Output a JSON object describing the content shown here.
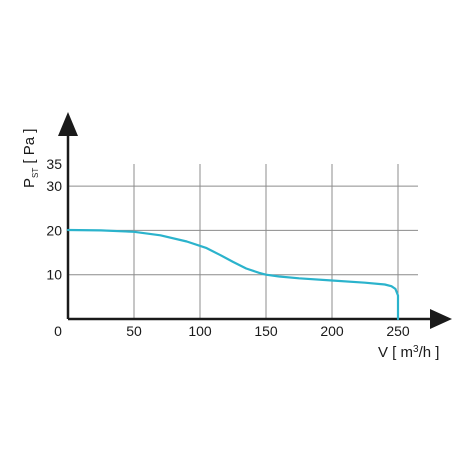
{
  "chart_data": {
    "type": "line",
    "xlabel": {
      "prefix": "V [ m",
      "sup": "3",
      "suffix": "/h ]"
    },
    "ylabel": {
      "main": "P",
      "sub": "ST",
      "suffix": " [ Pa ]"
    },
    "xlim": [
      0,
      250
    ],
    "ylim": [
      0,
      35
    ],
    "x_ticks": [
      50,
      100,
      150,
      200,
      250
    ],
    "y_ticks": [
      10,
      20,
      30,
      35
    ],
    "origin_label": "0",
    "grid": true,
    "line_color": "#2bb3cc",
    "series": [
      {
        "x": [
          0,
          25,
          50,
          70,
          90,
          105,
          115,
          125,
          135,
          145,
          150,
          160,
          175,
          200,
          225,
          240,
          245,
          248,
          250,
          250
        ],
        "y": [
          20.1,
          20.0,
          19.7,
          18.9,
          17.5,
          16.0,
          14.5,
          12.9,
          11.4,
          10.4,
          10.0,
          9.6,
          9.2,
          8.7,
          8.2,
          7.8,
          7.4,
          6.8,
          5.3,
          0
        ]
      }
    ]
  }
}
